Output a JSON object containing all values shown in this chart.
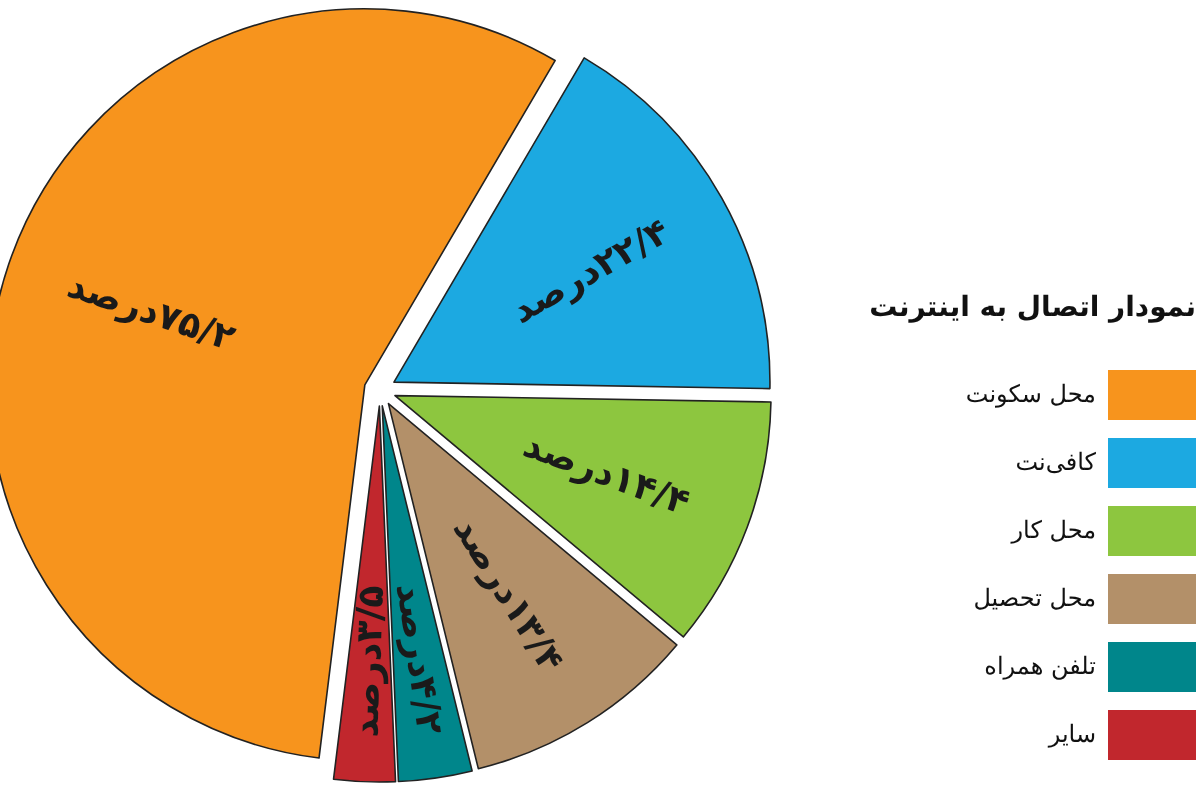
{
  "chart_data": {
    "type": "pie",
    "title": "نمودار اتصال به اینترنت",
    "categories": [
      "محل سکونت",
      "کافی‌نت",
      "محل کار",
      "محل تحصیل",
      "تلفن همراه",
      "سایر"
    ],
    "values": [
      75.2,
      22.4,
      14.4,
      13.4,
      4.2,
      3.5
    ],
    "value_labels": [
      "۷۵/۲درصد",
      "۲۲/۴درصد",
      "۱۴/۴درصد",
      "۱۳/۴درصد",
      "۴/۲درصد",
      "۳/۵درصد"
    ],
    "colors": [
      "#f7941d",
      "#1ca9e1",
      "#8dc63f",
      "#b39069",
      "#00868b",
      "#c1272d"
    ],
    "legend": "right"
  }
}
